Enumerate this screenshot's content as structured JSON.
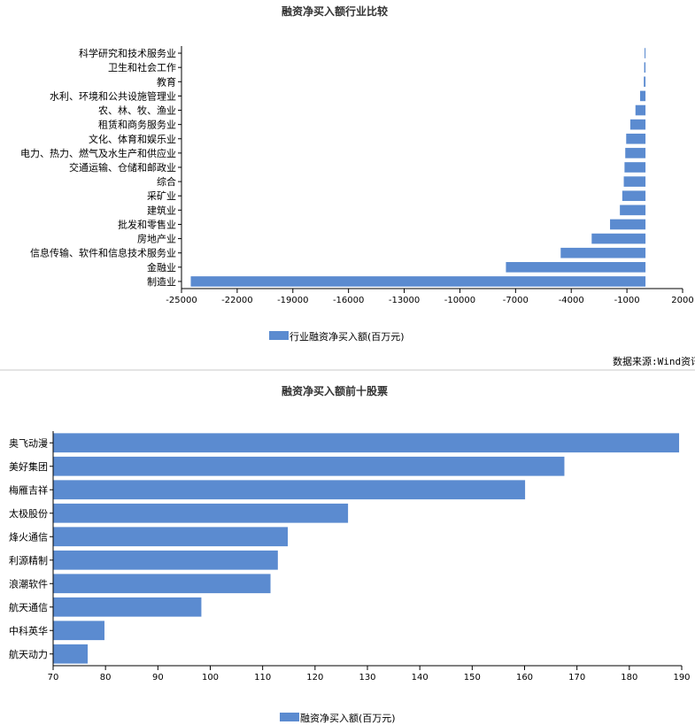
{
  "colors": {
    "bar": "#5b8bd0",
    "bar_border": "#4a78bd",
    "axis": "#000000",
    "divider": "#c8c8c8"
  },
  "source_text": "数据来源:Wind资讯",
  "chart_data": [
    {
      "type": "bar",
      "orientation": "horizontal",
      "title": "融资净买入额行业比较",
      "legend": "行业融资净买入额(百万元)",
      "categories": [
        "科学研究和技术服务业",
        "卫生和社会工作",
        "教育",
        "水利、环境和公共设施管理业",
        "农、林、牧、渔业",
        "租赁和商务服务业",
        "文化、体育和娱乐业",
        "电力、热力、燃气及水生产和供应业",
        "交通运输、仓储和邮政业",
        "综合",
        "采矿业",
        "建筑业",
        "批发和零售业",
        "房地产业",
        "信息传输、软件和信息技术服务业",
        "金融业",
        "制造业"
      ],
      "values": [
        -50,
        -70,
        -90,
        -290,
        -540,
        -820,
        -1040,
        -1090,
        -1130,
        -1170,
        -1250,
        -1380,
        -1910,
        -2900,
        -4570,
        -7520,
        -24500
      ],
      "xlim": [
        -25000,
        2000
      ],
      "xticks": [
        -25000,
        -22000,
        -19000,
        -16000,
        -13000,
        -10000,
        -7000,
        -4000,
        -1000,
        2000
      ]
    },
    {
      "type": "bar",
      "orientation": "horizontal",
      "title": "融资净买入额前十股票",
      "legend": "融资净买入额(百万元)",
      "categories": [
        "奥飞动漫",
        "美好集团",
        "梅雁吉祥",
        "太极股份",
        "烽火通信",
        "利源精制",
        "浪潮软件",
        "航天通信",
        "中科英华",
        "航天动力"
      ],
      "values": [
        189.5,
        167.6,
        160.1,
        126.3,
        114.8,
        112.9,
        111.5,
        98.3,
        79.8,
        76.6
      ],
      "xlim": [
        70,
        190
      ],
      "xticks": [
        70,
        80,
        90,
        100,
        110,
        120,
        130,
        140,
        150,
        160,
        170,
        180,
        190
      ]
    }
  ]
}
